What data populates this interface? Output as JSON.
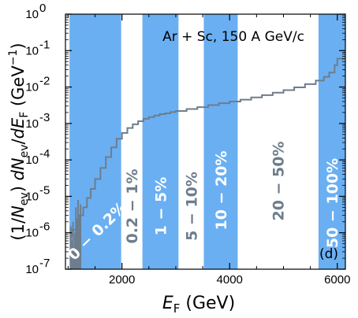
{
  "chart_data": {
    "type": "line",
    "title": "",
    "annotation": "Ar + Sc, 150 A GeV/c",
    "panel_label": "(d)",
    "xlabel": "E_F (GeV)",
    "ylabel": "(1/N_ev) dN_ev/dE_F (GeV^-1)",
    "x_scale": "linear",
    "y_scale": "log",
    "xlim": [
      950,
      6150
    ],
    "ylim": [
      1e-07,
      1
    ],
    "x_ticks": [
      2000,
      4000,
      6000
    ],
    "y_ticks": [
      1e-07,
      1e-06,
      1e-05,
      0.0001,
      0.001,
      0.01,
      0.1,
      1
    ],
    "y_tick_labels": [
      "10^-7",
      "10^-6",
      "10^-5",
      "10^-4",
      "10^-3",
      "10^-2",
      "10^-1",
      "10^0"
    ],
    "colors": {
      "band": "#6aaff2",
      "curve": "#6e7d8c",
      "band_label_dark": "#6e7d8c",
      "band_label_light": "#ffffff"
    },
    "centrality_bands": [
      {
        "label": "0 − 0.2%",
        "x_from": 1025,
        "x_to": 1985,
        "filled": true
      },
      {
        "label": "0.2 − 1%",
        "x_from": 1985,
        "x_to": 2380,
        "filled": false
      },
      {
        "label": "1 − 5%",
        "x_from": 2380,
        "x_to": 3050,
        "filled": true
      },
      {
        "label": "5 − 10%",
        "x_from": 3050,
        "x_to": 3520,
        "filled": false
      },
      {
        "label": "10 − 20%",
        "x_from": 3520,
        "x_to": 4150,
        "filled": true
      },
      {
        "label": "20 − 50%",
        "x_from": 4150,
        "x_to": 5650,
        "filled": false
      },
      {
        "label": "50 − 100%",
        "x_from": 5650,
        "x_to": 6150,
        "filled": true
      }
    ],
    "series": [
      {
        "x": [
          1025,
          1080,
          1150,
          1200,
          1280,
          1350,
          1420,
          1500,
          1600,
          1700,
          1800,
          1900,
          2000,
          2100,
          2200,
          2300,
          2400,
          2500,
          2600,
          2700,
          2800,
          2900,
          3000,
          3200,
          3400,
          3600,
          3800,
          4000,
          4200,
          4400,
          4600,
          4800,
          5000,
          5200,
          5400,
          5600,
          5750,
          5850,
          5950,
          6000,
          6100
        ],
        "y": [
          8e-07,
          1.2e-06,
          2e-06,
          3e-06,
          5e-06,
          9e-06,
          1.6e-05,
          3e-05,
          6e-05,
          0.00012,
          0.00022,
          0.00038,
          0.00055,
          0.00075,
          0.00095,
          0.00115,
          0.00135,
          0.0015,
          0.00165,
          0.0018,
          0.0019,
          0.00205,
          0.0022,
          0.0025,
          0.0028,
          0.0032,
          0.0036,
          0.004,
          0.0045,
          0.0052,
          0.006,
          0.007,
          0.0082,
          0.0098,
          0.012,
          0.015,
          0.019,
          0.025,
          0.04,
          0.06,
          0.055
        ]
      }
    ],
    "noise": [
      {
        "x": 1050,
        "y": 1.5e-06
      },
      {
        "x": 1065,
        "y": 6e-07
      },
      {
        "x": 1090,
        "y": 2e-06
      },
      {
        "x": 1110,
        "y": 4e-07
      },
      {
        "x": 1125,
        "y": 1e-06
      },
      {
        "x": 1145,
        "y": 5e-06
      },
      {
        "x": 1165,
        "y": 2.5e-06
      },
      {
        "x": 1185,
        "y": 8e-06
      },
      {
        "x": 1205,
        "y": 3e-06
      },
      {
        "x": 1230,
        "y": 6e-06
      }
    ]
  }
}
